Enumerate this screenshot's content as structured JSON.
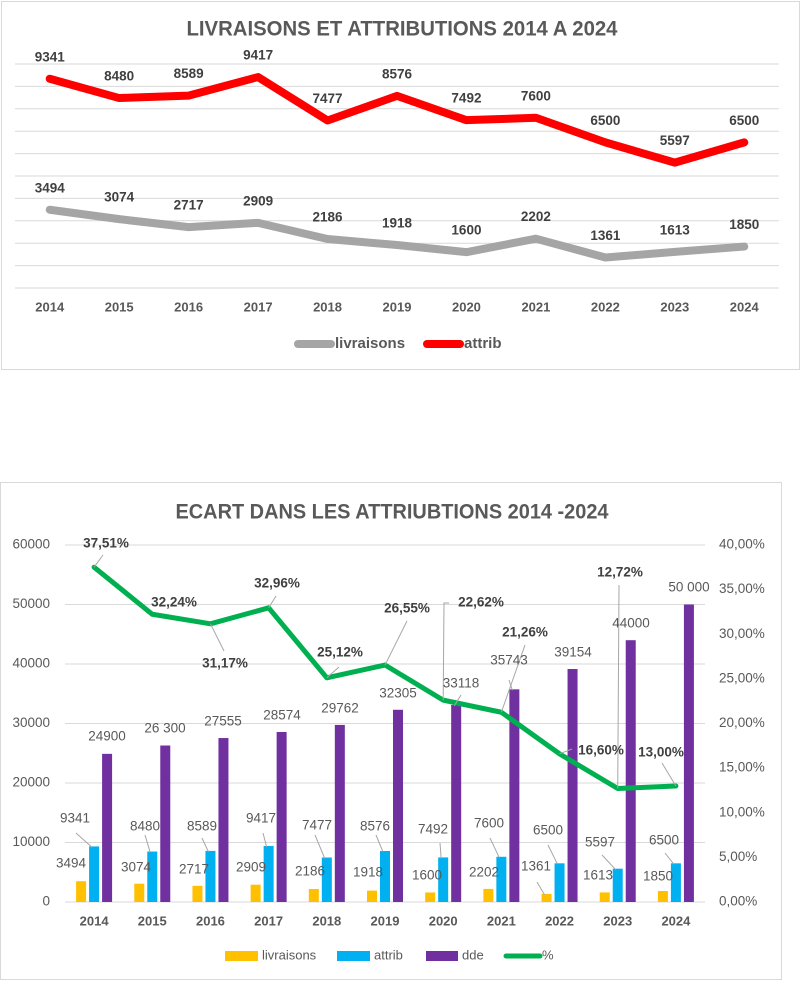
{
  "chart_data": [
    {
      "type": "line",
      "title": "LIVRAISONS ET ATTRIBUTIONS 2014 A 2024",
      "xlabel": "",
      "ylabel": "",
      "categories": [
        "2014",
        "2015",
        "2016",
        "2017",
        "2018",
        "2019",
        "2020",
        "2021",
        "2022",
        "2023",
        "2024"
      ],
      "series": [
        {
          "name": "livraisons",
          "color": "#A5A5A5",
          "values": [
            3494,
            3074,
            2717,
            2909,
            2186,
            1918,
            1600,
            2202,
            1361,
            1613,
            1850
          ]
        },
        {
          "name": "attrib",
          "color": "#FF0000",
          "values": [
            9341,
            8480,
            8589,
            9417,
            7477,
            8576,
            7492,
            7600,
            6500,
            5597,
            6500
          ]
        }
      ],
      "ylim": [
        0,
        10000
      ],
      "gridline_step": 1000,
      "grid": true,
      "legend": "bottom"
    },
    {
      "type": "bar+line",
      "title": "ECART DANS LES ATTRIUBTIONS 2014 -2024",
      "xlabel": "",
      "ylabel": "",
      "categories": [
        "2014",
        "2015",
        "2016",
        "2017",
        "2018",
        "2019",
        "2020",
        "2021",
        "2022",
        "2023",
        "2024"
      ],
      "series": [
        {
          "name": "livraisons",
          "type": "bar",
          "color": "#FFC000",
          "values": [
            3494,
            3074,
            2717,
            2909,
            2186,
            1918,
            1600,
            2202,
            1361,
            1613,
            1850
          ],
          "labels": [
            "3494",
            "3074",
            "2717",
            "2909",
            "2186",
            "1918",
            "1600",
            "2202",
            "1361",
            "1613",
            "1850"
          ]
        },
        {
          "name": "attrib",
          "type": "bar",
          "color": "#00B0F0",
          "values": [
            9341,
            8480,
            8589,
            9417,
            7477,
            8576,
            7492,
            7600,
            6500,
            5597,
            6500
          ],
          "labels": [
            "9341",
            "8480",
            "8589",
            "9417",
            "7477",
            "8576",
            "7492",
            "7600",
            "6500",
            "5597",
            "6500"
          ]
        },
        {
          "name": "dde",
          "type": "bar",
          "color": "#7030A0",
          "values": [
            24900,
            26300,
            27555,
            28574,
            29762,
            32305,
            33118,
            35743,
            39154,
            44000,
            50000
          ],
          "labels": [
            "24900",
            "26 300",
            "27555",
            "28574",
            "29762",
            "32305",
            "33118",
            "35743",
            "39154",
            "44000",
            "50 000"
          ]
        },
        {
          "name": "%",
          "type": "line",
          "color": "#00B050",
          "values": [
            37.51,
            32.24,
            31.17,
            32.96,
            25.12,
            26.55,
            22.62,
            21.26,
            16.6,
            12.72,
            13.0
          ],
          "labels": [
            "37,51%",
            "32,24%",
            "31,17%",
            "32,96%",
            "25,12%",
            "26,55%",
            "22,62%",
            "21,26%",
            "16,60%",
            "12,72%",
            "13,00%"
          ]
        }
      ],
      "y_left": {
        "ylim": [
          0,
          60000
        ],
        "step": 10000,
        "tick_labels": [
          "0",
          "10000",
          "20000",
          "30000",
          "40000",
          "50000",
          "60000"
        ]
      },
      "y_right": {
        "ylim": [
          0,
          40
        ],
        "step": 5,
        "series": "%",
        "tick_labels": [
          "0,00%",
          "5,00%",
          "10,00%",
          "15,00%",
          "20,00%",
          "25,00%",
          "30,00%",
          "35,00%",
          "40,00%"
        ]
      },
      "grid": true,
      "legend": "bottom"
    }
  ]
}
